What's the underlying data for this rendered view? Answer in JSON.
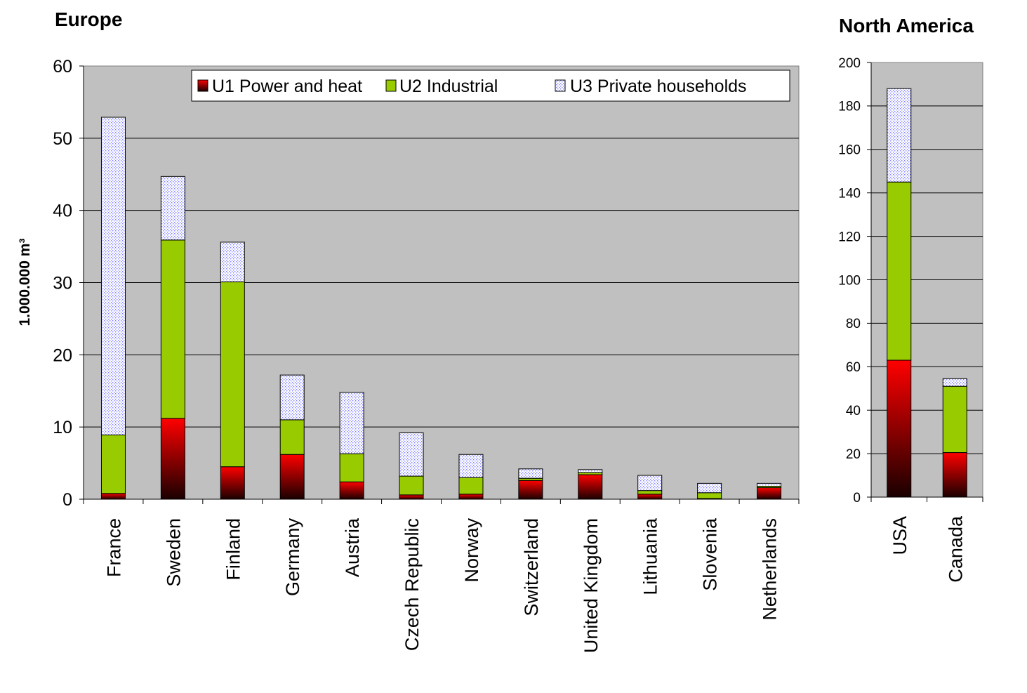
{
  "legend": {
    "u1": "U1 Power and heat",
    "u2": "U2 Industrial",
    "u3": "U3 Private households"
  },
  "colors": {
    "u1_top": "#ff0000",
    "u1_bottom": "#1a0000",
    "u2": "#99cc00",
    "u3_base": "#ffffff",
    "u3_pattern": "#7f7fff",
    "plot_background": "#c0c0c0"
  },
  "chart_data": [
    {
      "type": "bar",
      "stacked": true,
      "title": "Europe",
      "ylabel": "1.000.000 m³",
      "ylim": [
        0,
        60
      ],
      "yticks": [
        0,
        10,
        20,
        30,
        40,
        50,
        60
      ],
      "grid": true,
      "legend_position": "top-right",
      "categories": [
        "France",
        "Sweden",
        "Finland",
        "Germany",
        "Austria",
        "Czech Republic",
        "Norway",
        "Switzerland",
        "United Kingdom",
        "Lithuania",
        "Slovenia",
        "Netherlands"
      ],
      "series": [
        {
          "name": "U1 Power and heat",
          "values": [
            0.8,
            11.2,
            4.5,
            6.2,
            2.4,
            0.6,
            0.7,
            2.6,
            3.4,
            0.7,
            0.1,
            1.6
          ]
        },
        {
          "name": "U2 Industrial",
          "values": [
            8.1,
            24.7,
            25.6,
            4.8,
            3.9,
            2.6,
            2.3,
            0.3,
            0.3,
            0.5,
            0.8,
            0.2
          ]
        },
        {
          "name": "U3 Private households",
          "values": [
            44.0,
            8.8,
            5.5,
            6.2,
            8.5,
            6.0,
            3.2,
            1.3,
            0.4,
            2.1,
            1.3,
            0.4
          ]
        }
      ]
    },
    {
      "type": "bar",
      "stacked": true,
      "title": "North America",
      "ylim": [
        0,
        200
      ],
      "yticks": [
        0,
        20,
        40,
        60,
        80,
        100,
        120,
        140,
        160,
        180,
        200
      ],
      "grid": true,
      "categories": [
        "USA",
        "Canada"
      ],
      "series": [
        {
          "name": "U1 Power and heat",
          "values": [
            63,
            20.5
          ]
        },
        {
          "name": "U2 Industrial",
          "values": [
            82,
            30.5
          ]
        },
        {
          "name": "U3 Private households",
          "values": [
            43,
            3.5
          ]
        }
      ]
    }
  ]
}
